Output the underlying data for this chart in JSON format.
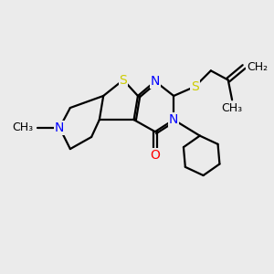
{
  "bg_color": "#ebebeb",
  "atom_colors": {
    "S": "#cccc00",
    "N": "#0000ff",
    "O": "#ff0000",
    "C": "#000000"
  },
  "bond_color": "#000000",
  "bond_width": 1.6,
  "font_size_atoms": 10,
  "xlim": [
    0,
    10
  ],
  "ylim": [
    0,
    10
  ],
  "figsize": [
    3.0,
    3.0
  ],
  "dpi": 100
}
